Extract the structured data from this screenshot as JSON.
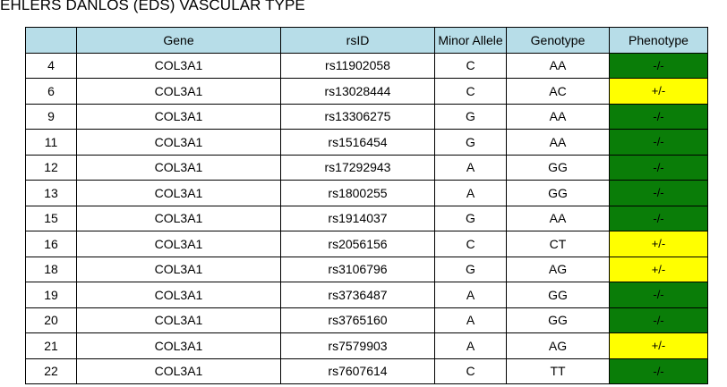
{
  "title": "EHLERS DANLOS (EDS) VASCULAR TYPE",
  "colors": {
    "header_bg": "#b7dde8",
    "phenotype_negative": "#0a7d08",
    "phenotype_partial": "#ffff00"
  },
  "table": {
    "headers": [
      "",
      "Gene",
      "rsID",
      "Minor Allele",
      "Genotype",
      "Phenotype"
    ],
    "rows": [
      {
        "num": "4",
        "gene": "COL3A1",
        "rsid": "rs11902058",
        "minor": "C",
        "genotype": "AA",
        "phenotype": "-/-"
      },
      {
        "num": "6",
        "gene": "COL3A1",
        "rsid": "rs13028444",
        "minor": "C",
        "genotype": "AC",
        "phenotype": "+/-"
      },
      {
        "num": "9",
        "gene": "COL3A1",
        "rsid": "rs13306275",
        "minor": "G",
        "genotype": "AA",
        "phenotype": "-/-"
      },
      {
        "num": "11",
        "gene": "COL3A1",
        "rsid": "rs1516454",
        "minor": "G",
        "genotype": "AA",
        "phenotype": "-/-"
      },
      {
        "num": "12",
        "gene": "COL3A1",
        "rsid": "rs17292943",
        "minor": "A",
        "genotype": "GG",
        "phenotype": "-/-"
      },
      {
        "num": "13",
        "gene": "COL3A1",
        "rsid": "rs1800255",
        "minor": "A",
        "genotype": "GG",
        "phenotype": "-/-"
      },
      {
        "num": "15",
        "gene": "COL3A1",
        "rsid": "rs1914037",
        "minor": "G",
        "genotype": "AA",
        "phenotype": "-/-"
      },
      {
        "num": "16",
        "gene": "COL3A1",
        "rsid": "rs2056156",
        "minor": "C",
        "genotype": "CT",
        "phenotype": "+/-"
      },
      {
        "num": "18",
        "gene": "COL3A1",
        "rsid": "rs3106796",
        "minor": "G",
        "genotype": "AG",
        "phenotype": "+/-"
      },
      {
        "num": "19",
        "gene": "COL3A1",
        "rsid": "rs3736487",
        "minor": "A",
        "genotype": "GG",
        "phenotype": "-/-"
      },
      {
        "num": "20",
        "gene": "COL3A1",
        "rsid": "rs3765160",
        "minor": "A",
        "genotype": "GG",
        "phenotype": "-/-"
      },
      {
        "num": "21",
        "gene": "COL3A1",
        "rsid": "rs7579903",
        "minor": "A",
        "genotype": "AG",
        "phenotype": "+/-"
      },
      {
        "num": "22",
        "gene": "COL3A1",
        "rsid": "rs7607614",
        "minor": "C",
        "genotype": "TT",
        "phenotype": "-/-"
      }
    ]
  }
}
